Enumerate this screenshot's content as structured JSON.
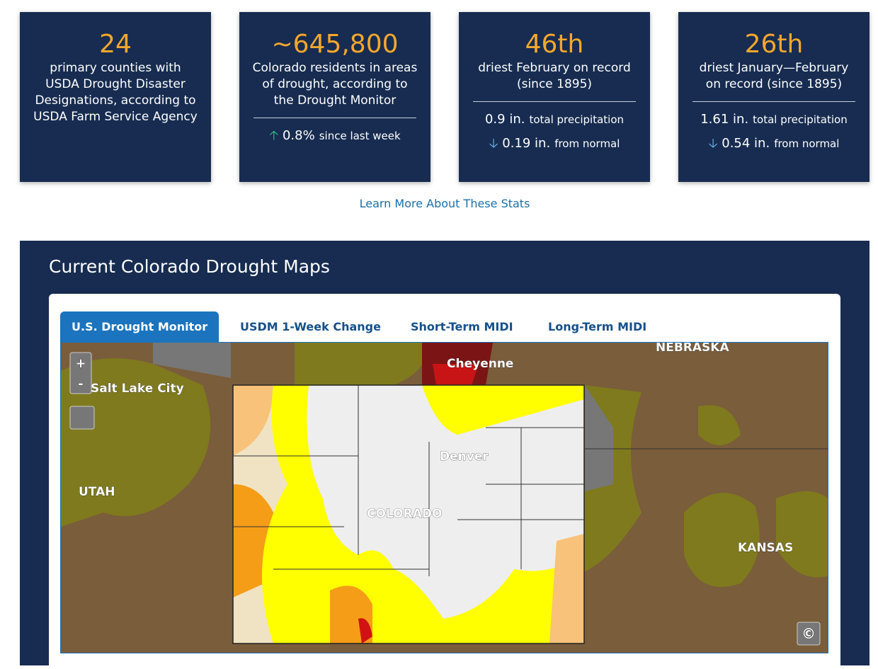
{
  "stats": [
    {
      "value": "24",
      "text": "primary counties with USDA Drought Disaster Designations, according to USDA Farm Service Agency"
    },
    {
      "value": "~645,800",
      "text": "Colorado residents in areas of drought, according to the Drought Monitor",
      "change": "0.8%",
      "change_label": "since last week"
    },
    {
      "value": "46th",
      "text": "driest February on record (since 1895)",
      "precip": "0.9 in.",
      "precip_label": "total precipitation",
      "normal": "0.19 in.",
      "normal_label": "from normal"
    },
    {
      "value": "26th",
      "text": "driest January—February on record (since 1895)",
      "precip": "1.61 in.",
      "precip_label": "total precipitation",
      "normal": "0.54 in.",
      "normal_label": "from normal"
    }
  ],
  "learn_more": "Learn More About These Stats",
  "maps": {
    "title": "Current Colorado Drought Maps",
    "tabs": [
      "U.S. Drought Monitor",
      "USDM 1-Week Change",
      "Short-Term MIDI",
      "Long-Term MIDI"
    ],
    "zoom_in": "+",
    "zoom_out": "-",
    "attribution": "©",
    "labels": [
      "Cheyenne",
      "NEBRASKA",
      "Salt Lake City",
      "UTAH",
      "Denver",
      "COLORADO",
      "KANSAS"
    ]
  }
}
